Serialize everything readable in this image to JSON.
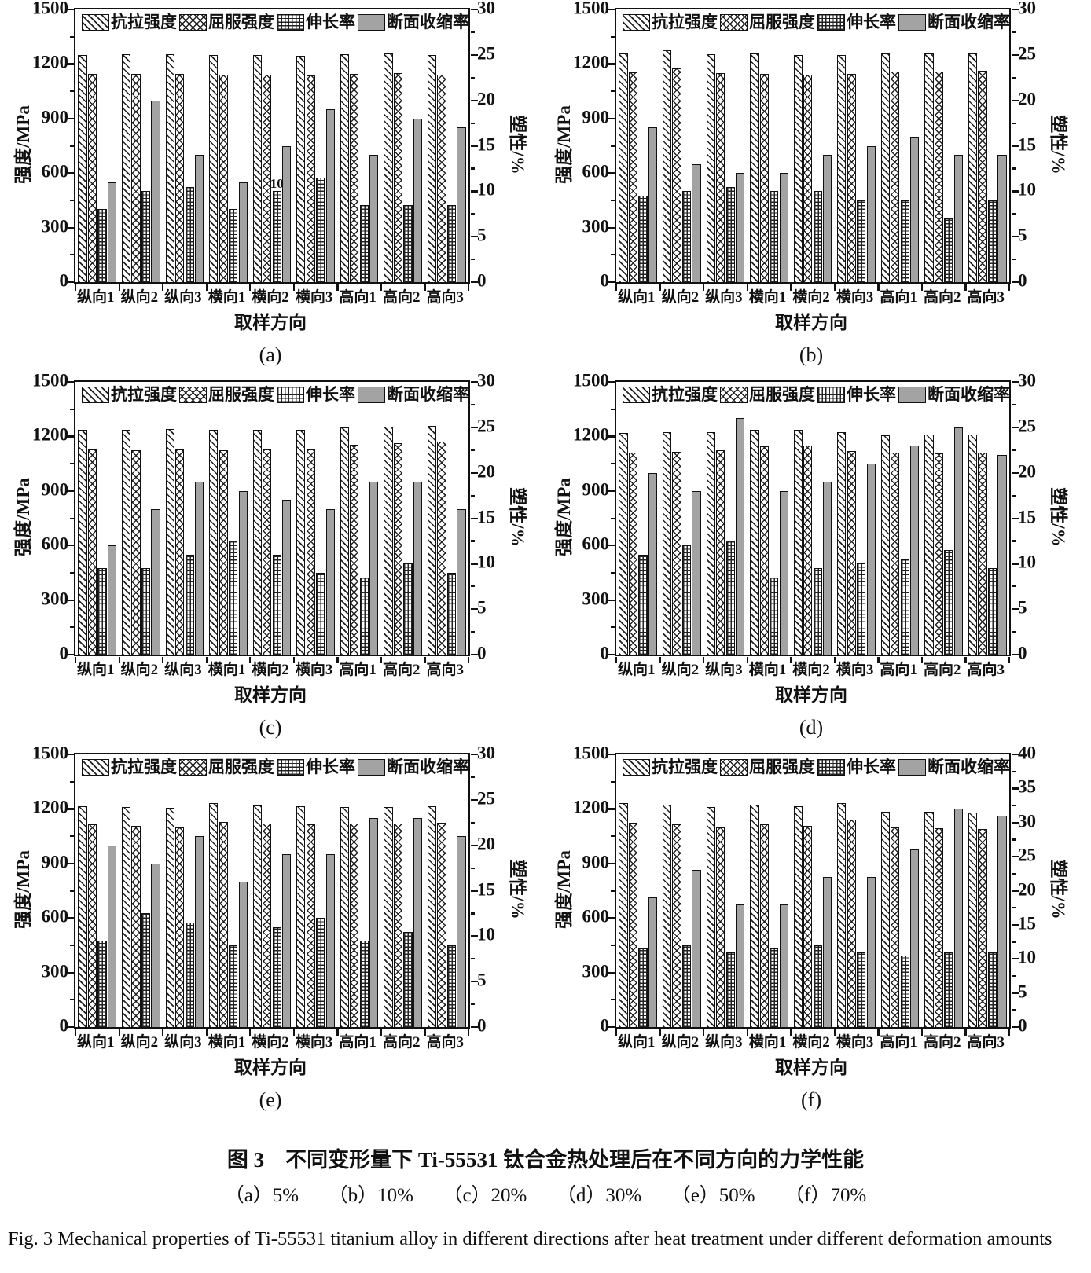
{
  "figure": {
    "caption_zh": "图 3　不同变形量下 Ti-55531 钛合金热处理后在不同方向的力学性能",
    "caption_items": "（a）5%　　（b）10%　　（c）20%　　（d）30%　　（e）50%　　（f）70%",
    "caption_en": "Fig. 3   Mechanical properties of Ti-55531 titanium alloy in different directions after heat treatment under different deformation amounts"
  },
  "chart_data": [
    {
      "type": "bar",
      "panel_label": "(a)",
      "deformation": "5%",
      "ylabel_left": "强度/MPa",
      "ylabel_right": "塑性/%",
      "xlabel": "取样方向",
      "ylim_left": [
        0,
        1500
      ],
      "ylim_right": [
        0,
        30
      ],
      "yticks_left": [
        1500,
        1200,
        900,
        600,
        300,
        0
      ],
      "yticks_right": [
        30,
        25,
        20,
        15,
        10,
        5,
        0
      ],
      "categories": [
        "纵向1",
        "纵向2",
        "纵向3",
        "横向1",
        "横向2",
        "横向3",
        "高向1",
        "高向2",
        "高向3"
      ],
      "legend_position": "top-inside",
      "grid": false,
      "series": [
        {
          "id": "tensile-strength",
          "name": "抗拉强度",
          "axis": "left",
          "pattern": "diagonal",
          "values": [
            1250,
            1255,
            1255,
            1250,
            1250,
            1245,
            1255,
            1260,
            1250
          ]
        },
        {
          "id": "yield-strength",
          "name": "屈服强度",
          "axis": "left",
          "pattern": "crosshatch",
          "values": [
            1145,
            1145,
            1145,
            1140,
            1140,
            1135,
            1145,
            1150,
            1140
          ]
        },
        {
          "id": "elongation",
          "name": "伸长率",
          "axis": "right",
          "pattern": "grid",
          "values": [
            8,
            10,
            10.5,
            8,
            10,
            11.5,
            8.5,
            8.5,
            8.5
          ]
        },
        {
          "id": "reduction-of-area",
          "name": "断面收缩率",
          "axis": "right",
          "pattern": "solid",
          "values": [
            11,
            20,
            14,
            11,
            15,
            19,
            14,
            18,
            17
          ]
        }
      ],
      "annotations": [
        {
          "text": "10",
          "category_index": 4,
          "series_index": 2
        }
      ]
    },
    {
      "type": "bar",
      "panel_label": "(b)",
      "deformation": "10%",
      "ylabel_left": "强度/MPa",
      "ylabel_right": "塑性/%",
      "xlabel": "取样方向",
      "ylim_left": [
        0,
        1500
      ],
      "ylim_right": [
        0,
        30
      ],
      "yticks_left": [
        1500,
        1200,
        900,
        600,
        300,
        0
      ],
      "yticks_right": [
        30,
        25,
        20,
        15,
        10,
        5,
        0
      ],
      "categories": [
        "纵向1",
        "纵向2",
        "纵向3",
        "横向1",
        "横向2",
        "横向3",
        "高向1",
        "高向2",
        "高向3"
      ],
      "legend_position": "top-inside",
      "grid": false,
      "series": [
        {
          "id": "tensile-strength",
          "name": "抗拉强度",
          "axis": "left",
          "pattern": "diagonal",
          "values": [
            1260,
            1275,
            1255,
            1260,
            1250,
            1250,
            1260,
            1260,
            1260
          ]
        },
        {
          "id": "yield-strength",
          "name": "屈服强度",
          "axis": "left",
          "pattern": "crosshatch",
          "values": [
            1155,
            1175,
            1150,
            1145,
            1140,
            1145,
            1160,
            1160,
            1165
          ]
        },
        {
          "id": "elongation",
          "name": "伸长率",
          "axis": "right",
          "pattern": "grid",
          "values": [
            9.5,
            10,
            10.5,
            10,
            10,
            9,
            9,
            7,
            9
          ]
        },
        {
          "id": "reduction-of-area",
          "name": "断面收缩率",
          "axis": "right",
          "pattern": "solid",
          "values": [
            17,
            13,
            12,
            12,
            14,
            15,
            16,
            14,
            14
          ]
        }
      ],
      "annotations": []
    },
    {
      "type": "bar",
      "panel_label": "(c)",
      "deformation": "20%",
      "ylabel_left": "强度/MPa",
      "ylabel_right": "塑性/%",
      "xlabel": "取样方向",
      "ylim_left": [
        0,
        1500
      ],
      "ylim_right": [
        0,
        30
      ],
      "yticks_left": [
        1500,
        1200,
        900,
        600,
        300,
        0
      ],
      "yticks_right": [
        30,
        25,
        20,
        15,
        10,
        5,
        0
      ],
      "categories": [
        "纵向1",
        "纵向2",
        "纵向3",
        "横向1",
        "横向2",
        "横向3",
        "高向1",
        "高向2",
        "高向3"
      ],
      "legend_position": "top-inside",
      "grid": false,
      "series": [
        {
          "id": "tensile-strength",
          "name": "抗拉强度",
          "axis": "left",
          "pattern": "diagonal",
          "values": [
            1235,
            1235,
            1240,
            1235,
            1235,
            1235,
            1250,
            1255,
            1260
          ]
        },
        {
          "id": "yield-strength",
          "name": "屈服强度",
          "axis": "left",
          "pattern": "crosshatch",
          "values": [
            1130,
            1125,
            1130,
            1125,
            1130,
            1130,
            1155,
            1165,
            1170
          ]
        },
        {
          "id": "elongation",
          "name": "伸长率",
          "axis": "right",
          "pattern": "grid",
          "values": [
            9.5,
            9.5,
            11,
            12.5,
            11,
            9,
            8.5,
            10,
            9
          ]
        },
        {
          "id": "reduction-of-area",
          "name": "断面收缩率",
          "axis": "right",
          "pattern": "solid",
          "values": [
            12,
            16,
            19,
            18,
            17,
            16,
            19,
            19,
            16
          ]
        }
      ],
      "annotations": []
    },
    {
      "type": "bar",
      "panel_label": "(d)",
      "deformation": "30%",
      "ylabel_left": "强度/MPa",
      "ylabel_right": "塑性/%",
      "xlabel": "取样方向",
      "ylim_left": [
        0,
        1500
      ],
      "ylim_right": [
        0,
        30
      ],
      "yticks_left": [
        1500,
        1200,
        900,
        600,
        300,
        0
      ],
      "yticks_right": [
        30,
        25,
        20,
        15,
        10,
        5,
        0
      ],
      "categories": [
        "纵向1",
        "纵向2",
        "纵向3",
        "横向1",
        "横向2",
        "横向3",
        "高向1",
        "高向2",
        "高向3"
      ],
      "legend_position": "top-inside",
      "grid": false,
      "series": [
        {
          "id": "tensile-strength",
          "name": "抗拉强度",
          "axis": "left",
          "pattern": "diagonal",
          "values": [
            1220,
            1225,
            1225,
            1235,
            1235,
            1225,
            1205,
            1210,
            1210
          ]
        },
        {
          "id": "yield-strength",
          "name": "屈服强度",
          "axis": "left",
          "pattern": "crosshatch",
          "values": [
            1110,
            1115,
            1125,
            1145,
            1150,
            1120,
            1110,
            1105,
            1110
          ]
        },
        {
          "id": "elongation",
          "name": "伸长率",
          "axis": "right",
          "pattern": "grid",
          "values": [
            11,
            12,
            12.5,
            8.5,
            9.5,
            10,
            10.5,
            11.5,
            9.5
          ]
        },
        {
          "id": "reduction-of-area",
          "name": "断面收缩率",
          "axis": "right",
          "pattern": "solid",
          "values": [
            20,
            18,
            26,
            18,
            19,
            21,
            23,
            25,
            22
          ]
        }
      ],
      "annotations": []
    },
    {
      "type": "bar",
      "panel_label": "(e)",
      "deformation": "50%",
      "ylabel_left": "强度/MPa",
      "ylabel_right": "塑性/%",
      "xlabel": "取样方向",
      "ylim_left": [
        0,
        1500
      ],
      "ylim_right": [
        0,
        30
      ],
      "yticks_left": [
        1500,
        1200,
        900,
        600,
        300,
        0
      ],
      "yticks_right": [
        30,
        25,
        20,
        15,
        10,
        5,
        0
      ],
      "categories": [
        "纵向1",
        "纵向2",
        "纵向3",
        "横向1",
        "横向2",
        "横向3",
        "高向1",
        "高向2",
        "高向3"
      ],
      "legend_position": "top-inside",
      "grid": false,
      "series": [
        {
          "id": "tensile-strength",
          "name": "抗拉强度",
          "axis": "left",
          "pattern": "diagonal",
          "values": [
            1215,
            1210,
            1205,
            1230,
            1220,
            1215,
            1210,
            1210,
            1215
          ]
        },
        {
          "id": "yield-strength",
          "name": "屈服强度",
          "axis": "left",
          "pattern": "crosshatch",
          "values": [
            1115,
            1105,
            1100,
            1130,
            1120,
            1115,
            1120,
            1120,
            1125
          ]
        },
        {
          "id": "elongation",
          "name": "伸长率",
          "axis": "right",
          "pattern": "grid",
          "values": [
            9.5,
            12.5,
            11.5,
            9,
            11,
            12,
            9.5,
            10.5,
            9
          ]
        },
        {
          "id": "reduction-of-area",
          "name": "断面收缩率",
          "axis": "right",
          "pattern": "solid",
          "values": [
            20,
            18,
            21,
            16,
            19,
            19,
            23,
            23,
            21
          ]
        }
      ],
      "annotations": []
    },
    {
      "type": "bar",
      "panel_label": "(f)",
      "deformation": "70%",
      "ylabel_left": "强度/MPa",
      "ylabel_right": "塑性/%",
      "xlabel": "取样方向",
      "ylim_left": [
        0,
        1500
      ],
      "ylim_right": [
        0,
        40
      ],
      "yticks_left": [
        1500,
        1200,
        900,
        600,
        300,
        0
      ],
      "yticks_right": [
        40,
        35,
        30,
        25,
        20,
        15,
        10,
        5,
        0
      ],
      "categories": [
        "纵向1",
        "纵向2",
        "纵向3",
        "横向1",
        "横向2",
        "横向3",
        "高向1",
        "高向2",
        "高向3"
      ],
      "legend_position": "top-inside",
      "grid": false,
      "series": [
        {
          "id": "tensile-strength",
          "name": "抗拉强度",
          "axis": "left",
          "pattern": "diagonal",
          "values": [
            1230,
            1225,
            1210,
            1225,
            1215,
            1230,
            1185,
            1185,
            1180
          ]
        },
        {
          "id": "yield-strength",
          "name": "屈服强度",
          "axis": "left",
          "pattern": "crosshatch",
          "values": [
            1125,
            1115,
            1100,
            1115,
            1105,
            1140,
            1100,
            1095,
            1090
          ]
        },
        {
          "id": "elongation",
          "name": "伸长率",
          "axis": "right",
          "pattern": "grid",
          "values": [
            11.5,
            12,
            11,
            11.5,
            12,
            11,
            10.5,
            11,
            11
          ]
        },
        {
          "id": "reduction-of-area",
          "name": "断面收缩率",
          "axis": "right",
          "pattern": "solid",
          "values": [
            19,
            23,
            18,
            18,
            22,
            22,
            26,
            32,
            31
          ]
        }
      ],
      "annotations": []
    }
  ]
}
